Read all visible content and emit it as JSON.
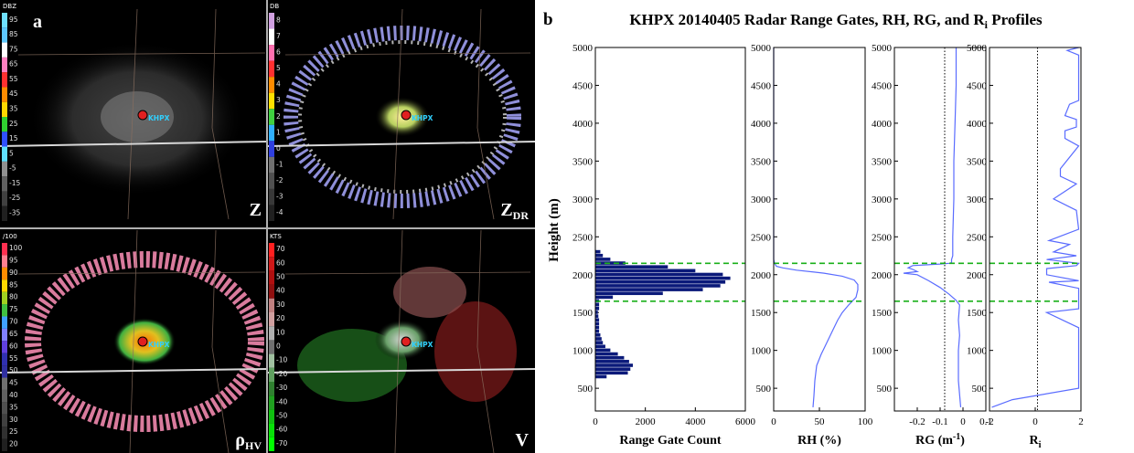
{
  "panel_a": {
    "label": "a",
    "station": "KHPX",
    "quadrants": [
      {
        "symbol": "Z",
        "sub": "",
        "unit": "DBZ",
        "ticks": [
          "95",
          "85",
          "75",
          "65",
          "55",
          "45",
          "35",
          "25",
          "15",
          "5",
          "-5",
          "-15",
          "-25",
          "-35"
        ],
        "colors": [
          "#6ee0ff",
          "#5ec8ff",
          "#ffffff",
          "#ff80c0",
          "#ff3030",
          "#ff8c00",
          "#ffd800",
          "#30d030",
          "#3050ff",
          "#60e0ff",
          "#909090",
          "#606060",
          "#404040",
          "#202020"
        ]
      },
      {
        "symbol": "Z",
        "sub": "DR",
        "unit": "DB",
        "ticks": [
          "8",
          "7",
          "6",
          "5",
          "4",
          "3",
          "2",
          "1",
          "0",
          "-1",
          "-2",
          "-3",
          "-4"
        ],
        "colors": [
          "#d0a0e0",
          "#ffffff",
          "#ff70b0",
          "#ff3030",
          "#ff8c00",
          "#ffe000",
          "#40d040",
          "#30b0ff",
          "#3040e0",
          "#707070",
          "#505050",
          "#383838",
          "#202020"
        ]
      },
      {
        "symbol": "ρ",
        "sub": "HV",
        "unit": "/100",
        "ticks": [
          "100",
          "95",
          "90",
          "85",
          "80",
          "75",
          "70",
          "65",
          "60",
          "55",
          "50",
          "45",
          "40",
          "35",
          "30",
          "25",
          "20"
        ],
        "colors": [
          "#ff3050",
          "#ff8090",
          "#ff8c00",
          "#ffd800",
          "#a0d020",
          "#40c040",
          "#40a0ff",
          "#8080ff",
          "#6040e0",
          "#3030b0",
          "#3030a0",
          "#707070",
          "#606060",
          "#505050",
          "#404040",
          "#303030",
          "#202020"
        ]
      },
      {
        "symbol": "V",
        "sub": "",
        "unit": "KTS",
        "ticks": [
          "70",
          "60",
          "50",
          "40",
          "30",
          "20",
          "10",
          "0",
          "-10",
          "-20",
          "-30",
          "-40",
          "-50",
          "-60",
          "-70"
        ],
        "colors": [
          "#ff2020",
          "#d01818",
          "#b01010",
          "#901010",
          "#c08080",
          "#d0a0a0",
          "#b0b0b0",
          "#707070",
          "#a0c0a0",
          "#60a060",
          "#308030",
          "#20a020",
          "#10c010",
          "#08e008",
          "#00ff00"
        ]
      }
    ]
  },
  "panel_b": {
    "label": "b",
    "title_main": "KHPX 20140405 Radar Range Gates, RH, RG, and R",
    "title_sub": "i",
    "title_tail": " Profiles",
    "ylabel": "Height (m)"
  },
  "chart_data": [
    {
      "type": "bar",
      "orientation": "horizontal",
      "xlabel": "Range Gate Count",
      "ylabel": "Height (m)",
      "xlim": [
        0,
        6000
      ],
      "ylim": [
        200,
        5000
      ],
      "xticks": [
        "0",
        "2000",
        "4000",
        "6000"
      ],
      "yticks": [
        "500",
        "1000",
        "1500",
        "2000",
        "2500",
        "3000",
        "3500",
        "4000",
        "4500",
        "5000"
      ],
      "bin_height": 50,
      "heights": [
        650,
        700,
        750,
        800,
        850,
        900,
        950,
        1000,
        1050,
        1100,
        1150,
        1200,
        1250,
        1300,
        1350,
        1400,
        1450,
        1500,
        1550,
        1600,
        1650,
        1700,
        1750,
        1800,
        1850,
        1900,
        1950,
        2000,
        2050,
        2100,
        2150,
        2200,
        2250,
        2300
      ],
      "values": [
        450,
        1300,
        1400,
        1500,
        1350,
        1150,
        900,
        600,
        400,
        300,
        250,
        200,
        150,
        150,
        150,
        150,
        120,
        100,
        150,
        150,
        150,
        700,
        2700,
        4300,
        5000,
        5200,
        5400,
        5100,
        4000,
        2900,
        1200,
        600,
        300,
        200
      ],
      "dashed_lines": [
        2150,
        1650
      ]
    },
    {
      "type": "line",
      "xlabel": "RH (%)",
      "xlim": [
        0,
        100
      ],
      "ylim": [
        200,
        5000
      ],
      "xticks": [
        "0",
        "50",
        "100"
      ],
      "x": [
        0,
        0,
        0,
        0,
        1,
        2,
        3,
        10,
        25,
        55,
        75,
        88,
        92,
        92,
        90,
        82,
        75,
        70,
        64,
        58,
        52,
        47,
        45,
        44,
        43
      ],
      "y": [
        5000,
        2500,
        2250,
        2200,
        2150,
        2130,
        2110,
        2090,
        2060,
        2020,
        1980,
        1930,
        1870,
        1800,
        1700,
        1600,
        1500,
        1400,
        1250,
        1100,
        950,
        800,
        600,
        400,
        250
      ],
      "dashed_lines": [
        2150,
        1650
      ]
    },
    {
      "type": "line",
      "xlabel": "RG (m",
      "xlabel_sup": "-1",
      "xlabel_tail": ")",
      "xlim": [
        -0.3,
        0.1
      ],
      "ylim": [
        200,
        5000
      ],
      "xticks": [
        "-0.2",
        "-0.1",
        "0",
        "0.1"
      ],
      "x": [
        -0.03,
        -0.03,
        -0.035,
        -0.04,
        -0.04,
        -0.045,
        -0.045,
        -0.05,
        -0.05,
        -0.06,
        -0.1,
        -0.22,
        -0.24,
        -0.22,
        -0.2,
        -0.26,
        -0.2,
        -0.15,
        -0.1,
        -0.06,
        -0.03,
        -0.015,
        -0.02,
        -0.015,
        -0.02,
        -0.02,
        -0.01
      ],
      "y": [
        5000,
        4500,
        4000,
        3500,
        3000,
        2500,
        2250,
        2200,
        2160,
        2150,
        2140,
        2120,
        2090,
        2070,
        2040,
        2020,
        2000,
        1920,
        1830,
        1740,
        1660,
        1600,
        1400,
        1200,
        1000,
        600,
        250
      ],
      "vline": -0.08,
      "dashed_lines": [
        2150,
        1650
      ]
    },
    {
      "type": "line",
      "xlabel": "R",
      "xlabel_sub": "i",
      "xlim": [
        -2,
        2
      ],
      "ylim": [
        200,
        5000
      ],
      "xticks": [
        "-2",
        "0",
        "2"
      ],
      "x": [
        1.9,
        1.4,
        1.9,
        1.9,
        1.5,
        1.3,
        1.8,
        1.8,
        1.3,
        1.3,
        1.9,
        1.1,
        1.1,
        1.8,
        0.8,
        1.8,
        1.9,
        0.6,
        1.5,
        0.8,
        1.8,
        0.5,
        1.9,
        1.8,
        0.5,
        0.5,
        1.9,
        0.6,
        1.9,
        1.9,
        0.5,
        1.9,
        1.9,
        -1.0,
        -1.9
      ],
      "y": [
        5000,
        4960,
        4900,
        4300,
        4250,
        4100,
        4050,
        3950,
        3900,
        3800,
        3700,
        3400,
        3300,
        3200,
        3000,
        2850,
        2600,
        2450,
        2400,
        2300,
        2250,
        2200,
        2150,
        2120,
        2080,
        2000,
        1920,
        1900,
        1820,
        1550,
        1500,
        1300,
        500,
        350,
        250
      ],
      "vline": 0.1,
      "dashed_lines": [
        2150,
        1650
      ]
    }
  ]
}
